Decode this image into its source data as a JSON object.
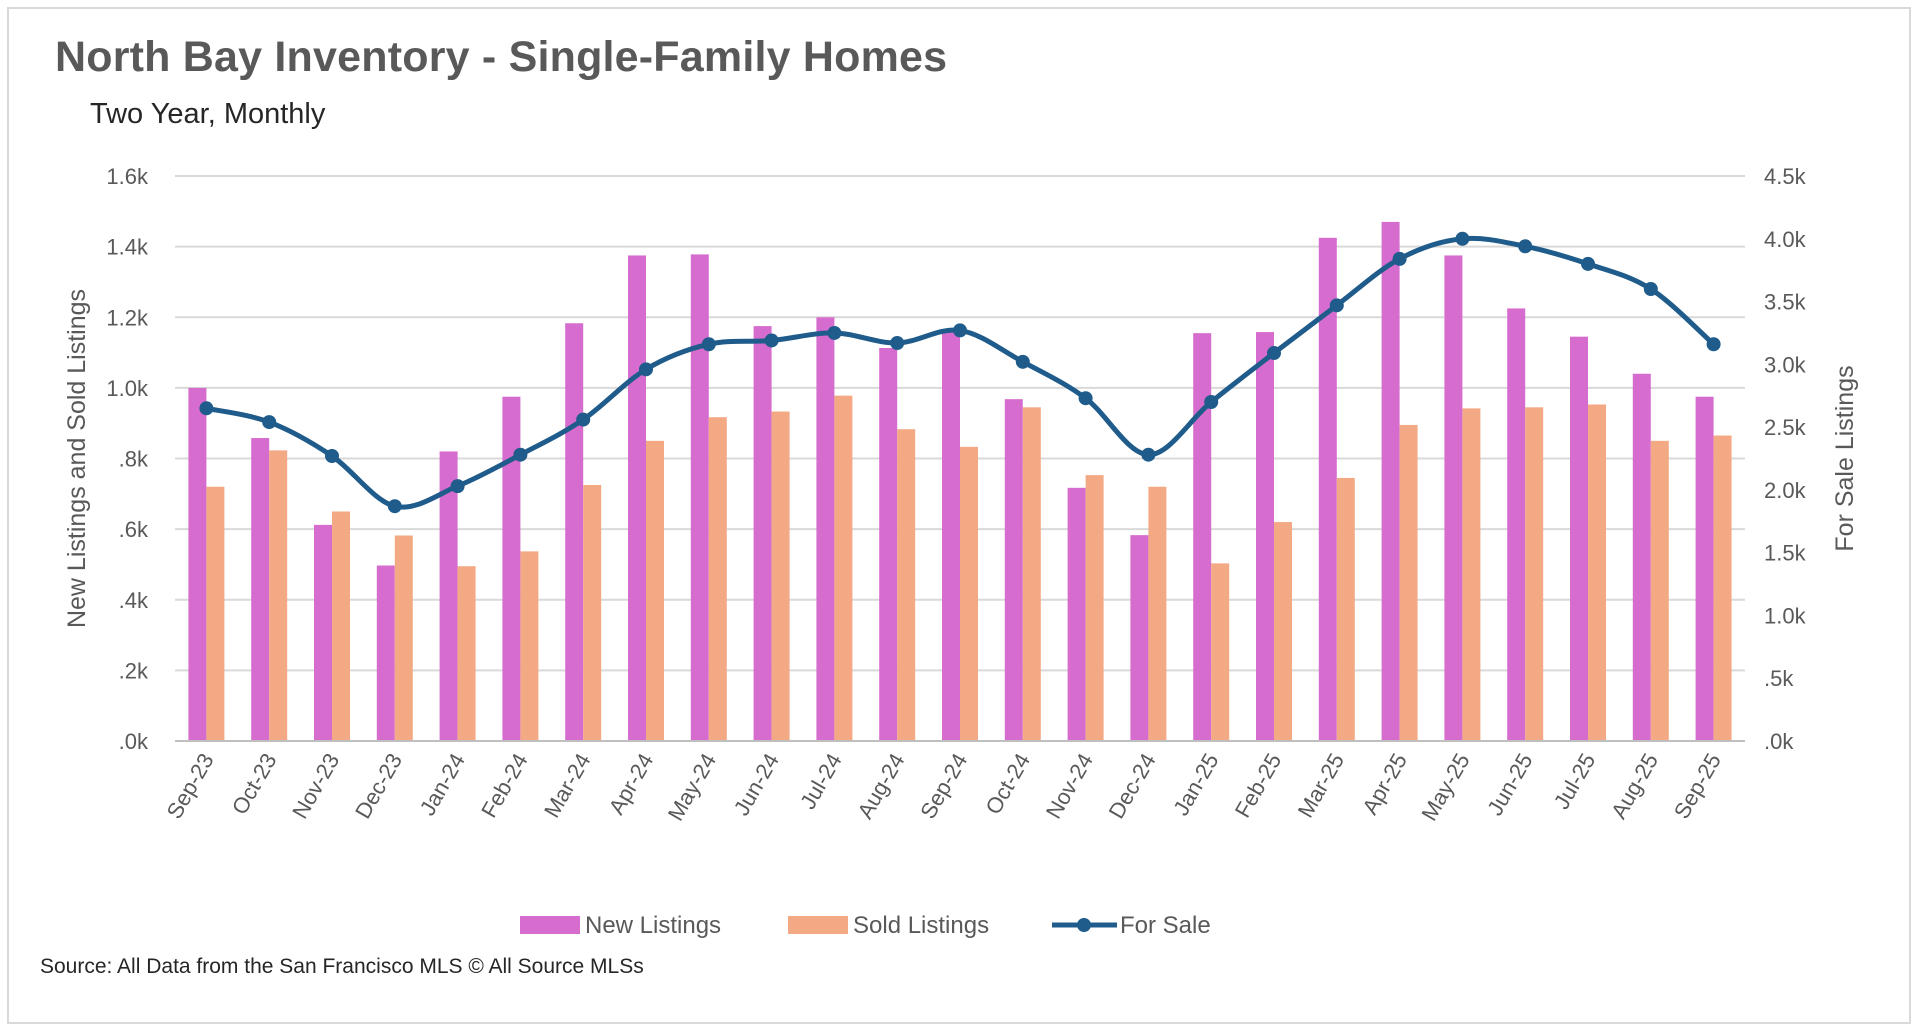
{
  "chart_data": {
    "type": "bar",
    "title": "North Bay Inventory - Single-Family Homes",
    "subtitle": "Two Year, Monthly",
    "source": "Source: All Data from the San Francisco MLS © All Source MLSs",
    "categories": [
      "Sep-23",
      "Oct-23",
      "Nov-23",
      "Dec-23",
      "Jan-24",
      "Feb-24",
      "Mar-24",
      "Apr-24",
      "May-24",
      "Jun-24",
      "Jul-24",
      "Aug-24",
      "Sep-24",
      "Oct-24",
      "Nov-24",
      "Dec-24",
      "Jan-25",
      "Feb-25",
      "Mar-25",
      "Apr-25",
      "May-25",
      "Jun-25",
      "Jul-25",
      "Aug-25",
      "Sep-25"
    ],
    "y_left": {
      "label": "New Listings and Sold Listings",
      "ylim": [
        0,
        1600
      ],
      "ticks": [
        0,
        200,
        400,
        600,
        800,
        1000,
        1200,
        1400,
        1600
      ],
      "tick_labels": [
        ".0k",
        ".2k",
        ".4k",
        ".6k",
        ".8k",
        "1.0k",
        "1.2k",
        "1.4k",
        "1.6k"
      ]
    },
    "y_right": {
      "label": "For Sale Listings",
      "ylim": [
        0,
        4500
      ],
      "ticks": [
        0,
        500,
        1000,
        1500,
        2000,
        2500,
        3000,
        3500,
        4000,
        4500
      ],
      "tick_labels": [
        ".0k",
        ".5k",
        "1.0k",
        "1.5k",
        "2.0k",
        "2.5k",
        "3.0k",
        "3.5k",
        "4.0k",
        "4.5k"
      ]
    },
    "grid": true,
    "legend_position": "bottom",
    "series": [
      {
        "name": "New Listings",
        "type": "bar",
        "axis": "left",
        "color": "#d66dce",
        "values": [
          1000,
          858,
          612,
          497,
          820,
          975,
          1183,
          1375,
          1378,
          1175,
          1200,
          1113,
          1158,
          968,
          717,
          583,
          1155,
          1158,
          1425,
          1470,
          1375,
          1225,
          1145,
          1040,
          975
        ]
      },
      {
        "name": "Sold Listings",
        "type": "bar",
        "axis": "left",
        "color": "#f4a985",
        "values": [
          720,
          823,
          650,
          582,
          495,
          537,
          725,
          850,
          917,
          933,
          978,
          883,
          833,
          945,
          753,
          720,
          503,
          620,
          745,
          895,
          942,
          945,
          953,
          850,
          865
        ]
      },
      {
        "name": "For Sale",
        "type": "line",
        "axis": "right",
        "color": "#1f5c8b",
        "values": [
          2650,
          2540,
          2270,
          1870,
          2030,
          2280,
          2560,
          2960,
          3160,
          3190,
          3250,
          3170,
          3270,
          3020,
          2730,
          2280,
          2700,
          3090,
          3470,
          3840,
          4000,
          3940,
          3800,
          3600,
          3160
        ]
      }
    ]
  }
}
